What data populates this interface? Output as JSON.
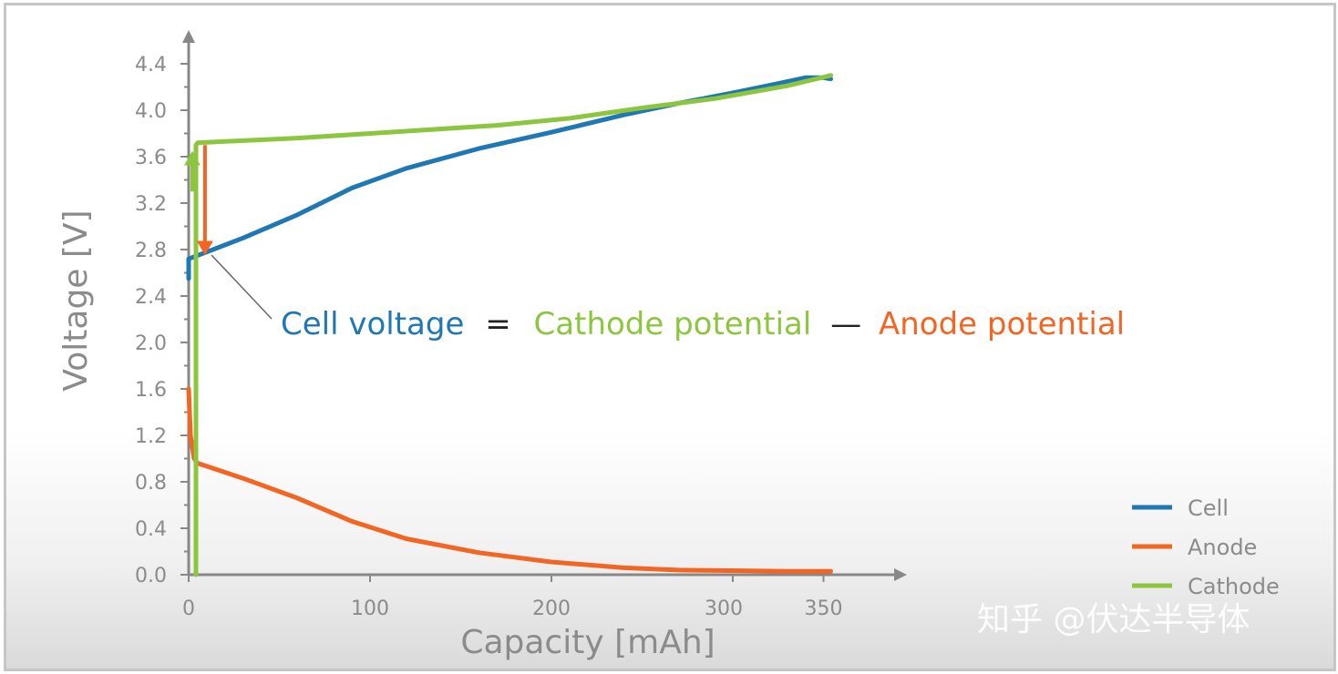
{
  "chart_data": {
    "type": "line",
    "xlabel": "Capacity [mAh]",
    "ylabel": "Voltage [V]",
    "xlim": [
      0,
      390
    ],
    "ylim": [
      0,
      4.6
    ],
    "x_ticks": [
      "0",
      "100",
      "200",
      "300",
      "350"
    ],
    "y_ticks": [
      "0.0",
      "0.4",
      "0.8",
      "1.2",
      "1.6",
      "2.0",
      "2.4",
      "2.8",
      "3.2",
      "3.6",
      "4.0",
      "4.4"
    ],
    "grid": false,
    "legend_position": "bottom-right",
    "series": [
      {
        "name": "Cell",
        "color": "#1f77b4",
        "points": [
          [
            0,
            2.55
          ],
          [
            0,
            2.72
          ],
          [
            5,
            2.75
          ],
          [
            30,
            2.9
          ],
          [
            60,
            3.1
          ],
          [
            90,
            3.33
          ],
          [
            120,
            3.5
          ],
          [
            160,
            3.67
          ],
          [
            200,
            3.81
          ],
          [
            240,
            3.96
          ],
          [
            270,
            4.06
          ],
          [
            300,
            4.15
          ],
          [
            325,
            4.23
          ],
          [
            340,
            4.28
          ],
          [
            350,
            4.28
          ],
          [
            354,
            4.27
          ]
        ]
      },
      {
        "name": "Anode",
        "color": "#f26522",
        "points": [
          [
            0,
            1.6
          ],
          [
            1,
            1.2
          ],
          [
            3,
            1.0
          ],
          [
            5,
            0.96
          ],
          [
            30,
            0.83
          ],
          [
            60,
            0.66
          ],
          [
            90,
            0.46
          ],
          [
            120,
            0.31
          ],
          [
            160,
            0.19
          ],
          [
            200,
            0.11
          ],
          [
            240,
            0.06
          ],
          [
            270,
            0.04
          ],
          [
            300,
            0.035
          ],
          [
            330,
            0.03
          ],
          [
            354,
            0.03
          ]
        ]
      },
      {
        "name": "Cathode",
        "color": "#8cc63f",
        "points": [
          [
            4,
            0
          ],
          [
            4,
            3.7
          ],
          [
            5,
            3.72
          ],
          [
            60,
            3.76
          ],
          [
            120,
            3.82
          ],
          [
            170,
            3.87
          ],
          [
            210,
            3.93
          ],
          [
            250,
            4.02
          ],
          [
            290,
            4.1
          ],
          [
            330,
            4.21
          ],
          [
            354,
            4.3
          ]
        ]
      }
    ],
    "equation": {
      "cell": "Cell voltage",
      "equals": "=",
      "cathode": "Cathode potential",
      "minus": "—",
      "anode": "Anode potential"
    },
    "annotation_arrow": {
      "x": 9,
      "from_y": 3.7,
      "to_y": 2.75,
      "color": "#f26522"
    },
    "cathode_arrow": {
      "x": 2,
      "from_y": 3.3,
      "to_y": 3.65,
      "color": "#8cc63f"
    }
  },
  "colors": {
    "axis": "#888888",
    "text": "#8b8b8b",
    "cell": "#1f77b4",
    "anode": "#f26522",
    "cathode": "#8cc63f"
  },
  "watermark": "知乎 @伏达半导体"
}
